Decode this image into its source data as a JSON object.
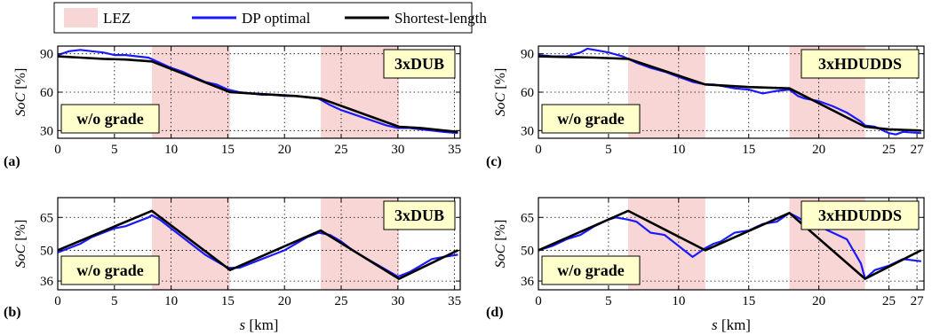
{
  "legend": {
    "items": [
      {
        "label": "LEZ",
        "kind": "patch",
        "color": "#f9d6d6"
      },
      {
        "label": "DP optimal",
        "kind": "line",
        "color": "#1a1aff"
      },
      {
        "label": "Shortest-length",
        "kind": "line",
        "color": "#000000"
      }
    ]
  },
  "x_axis_label": {
    "italic": "s",
    "rest": " [km]"
  },
  "y_axis_label": {
    "italic": "SoC",
    "rest": " [%]"
  },
  "chart_data": [
    {
      "type": "line",
      "panel": "(a)",
      "cycle": "3xDUB",
      "grade": "w/o grade",
      "xlim": [
        0,
        35.5
      ],
      "ylim": [
        24,
        96
      ],
      "xticks": [
        0,
        5,
        10,
        15,
        20,
        25,
        30,
        35
      ],
      "yticks": [
        30,
        60,
        90
      ],
      "lez": [
        [
          8.3,
          15.2
        ],
        [
          23.2,
          30.1
        ]
      ],
      "series": [
        {
          "name": "Shortest-length",
          "x": [
            0,
            2,
            4,
            6,
            8.3,
            15.2,
            18,
            21,
            23.2,
            30.1,
            32,
            35.3
          ],
          "y": [
            88,
            87,
            86,
            85.5,
            84,
            60,
            58.5,
            57,
            55,
            33,
            32,
            29
          ]
        },
        {
          "name": "DP optimal",
          "x": [
            0,
            1,
            2,
            3,
            4,
            5,
            6,
            7,
            8,
            9,
            10,
            11,
            12,
            13,
            14,
            15,
            16,
            17,
            18,
            19,
            20,
            21,
            22,
            23,
            24,
            25,
            26,
            27,
            28,
            29,
            30,
            31,
            32,
            33,
            34,
            35.3
          ],
          "y": [
            89,
            92,
            93,
            92,
            91,
            89,
            89,
            88,
            87,
            83,
            79,
            76,
            72,
            68,
            66,
            62,
            60,
            59,
            58,
            58,
            57,
            57,
            56,
            55,
            50,
            46,
            43,
            40,
            37,
            34,
            32,
            32,
            31,
            30,
            29,
            28
          ]
        }
      ]
    },
    {
      "type": "line",
      "panel": "(b)",
      "cycle": "3xDUB",
      "grade": "w/o grade",
      "xlim": [
        0,
        35.5
      ],
      "ylim": [
        32,
        74
      ],
      "xticks": [
        0,
        5,
        10,
        15,
        20,
        25,
        30,
        35
      ],
      "yticks": [
        36,
        50,
        65
      ],
      "lez": [
        [
          8.3,
          15.2
        ],
        [
          23.2,
          30.1
        ]
      ],
      "series": [
        {
          "name": "Shortest-length",
          "x": [
            0,
            8.3,
            15.2,
            23.2,
            30.1,
            35.3
          ],
          "y": [
            50,
            68,
            41,
            59,
            37,
            50
          ]
        },
        {
          "name": "DP optimal",
          "x": [
            0,
            1,
            2,
            3,
            4,
            5,
            6,
            7,
            8,
            8.3,
            9,
            10,
            11,
            12,
            13,
            14,
            15,
            16,
            17,
            18,
            19,
            20,
            21,
            22,
            23,
            24,
            25,
            26,
            27,
            28,
            29,
            30,
            31,
            32,
            33,
            34,
            35.3
          ],
          "y": [
            49,
            51,
            53,
            56,
            58,
            60,
            61,
            63,
            65,
            66,
            64,
            60,
            56,
            52,
            48,
            45,
            42,
            42,
            44,
            46,
            48,
            50,
            53,
            56,
            58,
            57,
            54,
            50,
            47,
            44,
            41,
            38,
            40,
            43,
            46,
            47,
            48
          ]
        }
      ]
    },
    {
      "type": "line",
      "panel": "(c)",
      "cycle": "3xHDUDDS",
      "grade": "w/o grade",
      "xlim": [
        0,
        27.5
      ],
      "ylim": [
        24,
        96
      ],
      "xticks": [
        0,
        5,
        10,
        15,
        20,
        25,
        27
      ],
      "yticks": [
        30,
        60,
        90
      ],
      "lez": [
        [
          6.4,
          11.9
        ],
        [
          17.9,
          23.3
        ]
      ],
      "series": [
        {
          "name": "Shortest-length",
          "x": [
            0,
            2,
            4,
            6.4,
            11.9,
            15,
            17.9,
            23.3,
            25,
            27.3
          ],
          "y": [
            88,
            87.5,
            87,
            86,
            66,
            64,
            63,
            33,
            31,
            30
          ]
        },
        {
          "name": "DP optimal",
          "x": [
            0,
            1,
            2,
            3,
            3.5,
            4,
            5,
            6,
            6.4,
            7,
            8,
            9,
            10,
            11,
            11.9,
            12.5,
            13,
            14,
            15,
            16,
            17,
            17.9,
            18.5,
            19,
            20,
            21,
            22,
            23,
            23.3,
            24,
            25,
            25.5,
            26,
            27.3
          ],
          "y": [
            89,
            88,
            88,
            91,
            94,
            93,
            91,
            88,
            86,
            83,
            79,
            76,
            72,
            68,
            66,
            66,
            65,
            63,
            62,
            59,
            61,
            62,
            57,
            55,
            53,
            49,
            44,
            37,
            34,
            33,
            28,
            27,
            29,
            28
          ]
        }
      ]
    },
    {
      "type": "line",
      "panel": "(d)",
      "cycle": "3xHDUDDS",
      "grade": "w/o grade",
      "xlim": [
        0,
        27.5
      ],
      "ylim": [
        32,
        74
      ],
      "xticks": [
        0,
        5,
        10,
        15,
        20,
        25,
        27
      ],
      "yticks": [
        36,
        50,
        65
      ],
      "lez": [
        [
          6.4,
          11.9
        ],
        [
          17.9,
          23.3
        ]
      ],
      "series": [
        {
          "name": "Shortest-length",
          "x": [
            0,
            6.4,
            11.9,
            17.9,
            23.3,
            27.3
          ],
          "y": [
            50,
            68,
            50,
            67,
            37,
            50
          ]
        },
        {
          "name": "DP optimal",
          "x": [
            0,
            1,
            2,
            3,
            4,
            5,
            5.5,
            6.4,
            7,
            8,
            9,
            10,
            11,
            11.9,
            12.5,
            13,
            14,
            15,
            16,
            17,
            17.9,
            18.5,
            19,
            20,
            21,
            22,
            23,
            23.3,
            24,
            25,
            26,
            27.3
          ],
          "y": [
            50,
            52,
            55,
            57,
            61,
            64,
            65,
            64,
            63,
            58,
            57,
            52,
            47,
            51,
            53,
            54,
            58,
            59,
            62,
            63,
            67,
            65,
            63,
            61,
            58,
            55,
            44,
            37,
            41,
            43,
            46,
            45
          ]
        }
      ]
    }
  ]
}
